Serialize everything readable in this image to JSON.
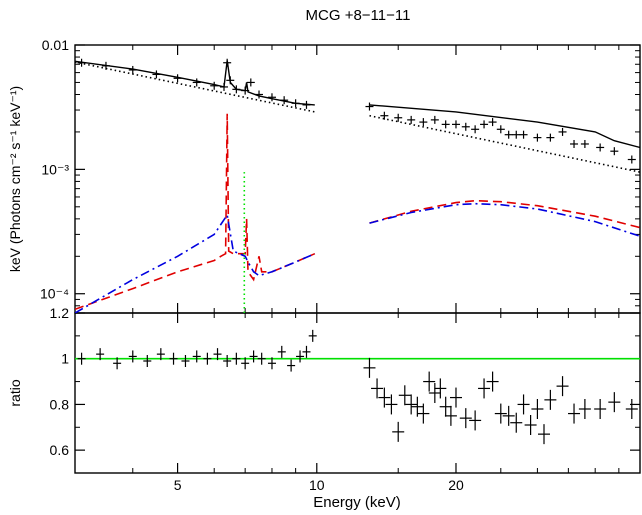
{
  "chart_data": [
    {
      "type": "line",
      "panel": "spectrum",
      "title": "MCG +8−11−11",
      "ylabel": "keV (Photons cm⁻² s⁻¹ keV⁻¹)",
      "xlabel": "",
      "xscale": "log",
      "yscale": "log",
      "xlim": [
        3.0,
        50.0
      ],
      "ylim": [
        7e-05,
        0.01
      ],
      "ytick_labels": [
        "0.01",
        "10⁻³",
        "10⁻⁴"
      ],
      "ytick_values": [
        0.01,
        0.001,
        0.0001
      ],
      "colors": {
        "model": "#000000",
        "powerlaw": "#000000",
        "reflection": "#e00000",
        "reflection_alt": "#0000e0",
        "line": "#00e000"
      },
      "series": [
        {
          "role": "data-low",
          "style": "crosses",
          "x": [
            3.1,
            3.5,
            4.0,
            4.5,
            5.0,
            5.5,
            6.0,
            6.3,
            6.4,
            6.5,
            6.7,
            7.0,
            7.2,
            7.5,
            8.0,
            8.5,
            9.0,
            9.5
          ],
          "y": [
            0.0072,
            0.0068,
            0.0063,
            0.0058,
            0.0054,
            0.005,
            0.0047,
            0.0046,
            0.0072,
            0.0052,
            0.0044,
            0.0043,
            0.005,
            0.004,
            0.0038,
            0.0036,
            0.0034,
            0.0033
          ]
        },
        {
          "role": "data-high",
          "style": "crosses",
          "x": [
            13.0,
            14.0,
            15.0,
            16.0,
            17.0,
            18.0,
            19.0,
            20.0,
            21.0,
            22.0,
            23.0,
            24.0,
            25.0,
            26.0,
            27.0,
            28.0,
            30.0,
            32.0,
            34.0,
            36.0,
            38.0,
            41.0,
            44.0,
            48.0
          ],
          "y": [
            0.0032,
            0.0027,
            0.0026,
            0.0025,
            0.0024,
            0.0025,
            0.0023,
            0.0023,
            0.0022,
            0.0021,
            0.0023,
            0.0024,
            0.0021,
            0.0019,
            0.0019,
            0.0019,
            0.0018,
            0.0018,
            0.002,
            0.0016,
            0.0016,
            0.0015,
            0.0014,
            0.0012
          ]
        },
        {
          "role": "total-model-low",
          "style": "solid",
          "x": [
            3.0,
            4.0,
            5.0,
            6.0,
            6.3,
            6.4,
            6.5,
            6.7,
            7.0,
            7.05,
            7.1,
            7.5,
            8.0,
            9.0,
            9.9
          ],
          "y": [
            0.0074,
            0.0064,
            0.0055,
            0.0048,
            0.0046,
            0.0075,
            0.005,
            0.0044,
            0.0043,
            0.005,
            0.0042,
            0.0039,
            0.0037,
            0.0034,
            0.0033
          ]
        },
        {
          "role": "total-model-high",
          "style": "solid",
          "x": [
            13.0,
            20.0,
            30.0,
            40.0,
            44.0,
            50.0
          ],
          "y": [
            0.0033,
            0.0029,
            0.0024,
            0.002,
            0.0017,
            0.0015
          ]
        },
        {
          "role": "powerlaw-low",
          "style": "dotted",
          "x": [
            3.0,
            9.9
          ],
          "y": [
            0.0073,
            0.0029
          ]
        },
        {
          "role": "powerlaw-high",
          "style": "dotted",
          "x": [
            13.0,
            50.0
          ],
          "y": [
            0.0027,
            0.00095
          ]
        },
        {
          "role": "reflection-red-low",
          "style": "dashed",
          "color": "red",
          "x": [
            3.0,
            4.0,
            5.0,
            6.0,
            6.2,
            6.35,
            6.4,
            6.45,
            6.6,
            7.0,
            7.05,
            7.1,
            7.3,
            7.5,
            7.6,
            8.0,
            9.0,
            9.9
          ],
          "y": [
            7.5e-05,
            0.00011,
            0.00015,
            0.000185,
            0.0002,
            0.00021,
            0.0028,
            0.00022,
            0.00021,
            0.00021,
            0.0004,
            0.00015,
            0.00013,
            0.0002,
            0.00015,
            0.00015,
            0.00018,
            0.00021
          ]
        },
        {
          "role": "reflection-red-high",
          "style": "dashed",
          "color": "red",
          "x": [
            13.0,
            16.0,
            20.0,
            22.0,
            25.0,
            30.0,
            40.0,
            50.0
          ],
          "y": [
            0.00037,
            0.00046,
            0.00054,
            0.00056,
            0.00055,
            0.00051,
            0.00042,
            0.00034
          ]
        },
        {
          "role": "reflection-blue-low",
          "style": "dashdot",
          "color": "blue",
          "x": [
            3.0,
            4.0,
            5.0,
            6.0,
            6.2,
            6.4,
            6.6,
            7.0,
            7.1,
            7.3,
            7.5,
            8.0,
            9.0,
            9.9
          ],
          "y": [
            7e-05,
            0.00013,
            0.0002,
            0.0003,
            0.00036,
            0.00043,
            0.00022,
            0.0002,
            0.00018,
            0.00015,
            0.00014,
            0.00015,
            0.00018,
            0.00021
          ]
        },
        {
          "role": "reflection-blue-high",
          "style": "dashdot",
          "color": "blue",
          "x": [
            13.0,
            16.0,
            20.0,
            22.0,
            25.0,
            30.0,
            40.0,
            50.0
          ],
          "y": [
            0.00037,
            0.00045,
            0.00052,
            0.00053,
            0.00052,
            0.00048,
            0.00038,
            0.00029
          ]
        },
        {
          "role": "gaussian-line",
          "style": "dotted",
          "color": "green",
          "x": [
            6.97,
            6.97
          ],
          "y": [
            7e-05,
            0.00095
          ]
        }
      ]
    },
    {
      "type": "scatter",
      "panel": "ratio",
      "xlabel": "Energy (keV)",
      "ylabel": "ratio",
      "xscale": "log",
      "xlim": [
        3.0,
        50.0
      ],
      "ylim": [
        0.5,
        1.2
      ],
      "xtick_labels": [
        "5",
        "10",
        "20"
      ],
      "xtick_values": [
        5,
        10,
        20
      ],
      "ytick_labels": [
        "1.2",
        "1",
        "0.8",
        "0.6"
      ],
      "ytick_values": [
        1.2,
        1.0,
        0.8,
        0.6
      ],
      "reference_line": 1.0,
      "series": [
        {
          "role": "ratio-low",
          "x": [
            3.1,
            3.4,
            3.7,
            4.0,
            4.3,
            4.6,
            4.9,
            5.2,
            5.5,
            5.8,
            6.1,
            6.4,
            6.7,
            7.0,
            7.3,
            7.6,
            8.0,
            8.4,
            8.8,
            9.2,
            9.5,
            9.8
          ],
          "y": [
            1.0,
            1.02,
            0.98,
            1.01,
            0.99,
            1.02,
            1.0,
            0.99,
            1.01,
            1.0,
            1.02,
            0.99,
            1.0,
            0.98,
            1.01,
            1.0,
            0.98,
            1.03,
            0.97,
            1.01,
            1.03,
            1.1
          ]
        },
        {
          "role": "ratio-high",
          "x": [
            13.0,
            13.5,
            14.0,
            14.5,
            15.0,
            15.5,
            16.0,
            16.5,
            17.0,
            17.5,
            18.0,
            18.5,
            19.0,
            19.5,
            20.0,
            21.0,
            22.0,
            23.0,
            24.0,
            25.0,
            26.0,
            27.0,
            28.0,
            29.0,
            30.0,
            31.0,
            32.0,
            34.0,
            36.0,
            38.0,
            41.0,
            44.0,
            48.0
          ],
          "y": [
            0.96,
            0.87,
            0.83,
            0.8,
            0.68,
            0.84,
            0.8,
            0.79,
            0.76,
            0.9,
            0.85,
            0.87,
            0.79,
            0.75,
            0.83,
            0.74,
            0.73,
            0.87,
            0.9,
            0.76,
            0.75,
            0.72,
            0.8,
            0.71,
            0.78,
            0.67,
            0.82,
            0.88,
            0.76,
            0.78,
            0.78,
            0.81,
            0.78
          ]
        }
      ]
    }
  ]
}
